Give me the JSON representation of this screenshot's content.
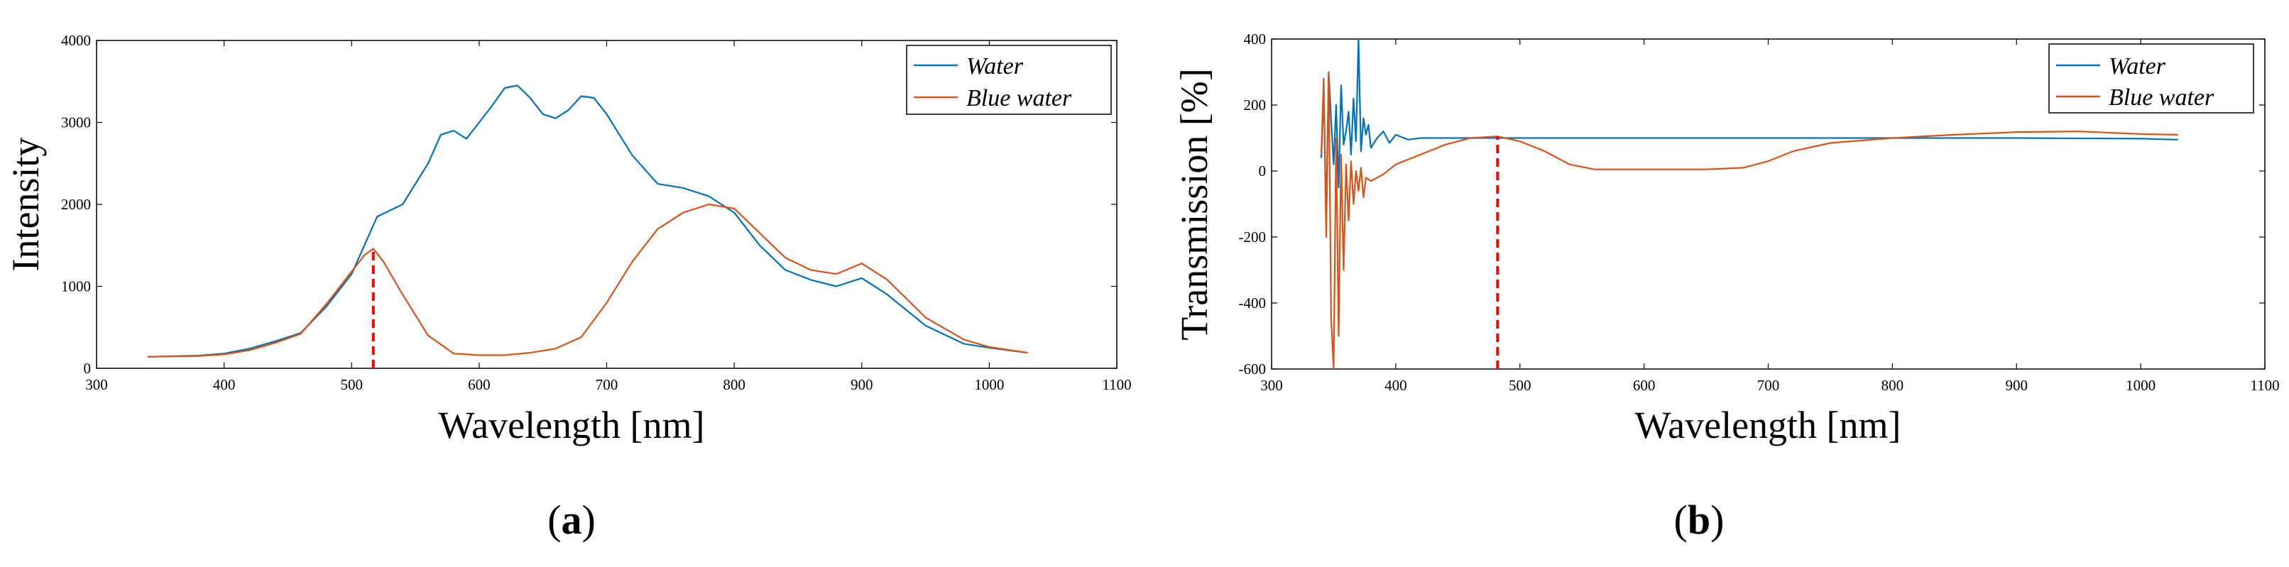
{
  "figure": {
    "panels": [
      {
        "id": "a",
        "label_open": "(",
        "label_letter": "a",
        "label_close": ")"
      },
      {
        "id": "b",
        "label_open": "(",
        "label_letter": "b",
        "label_close": ")"
      }
    ]
  },
  "colors": {
    "water": "#0072BD",
    "blue_water": "#D95319",
    "marker": "#FF0000"
  },
  "chart_data": [
    {
      "type": "line",
      "panel": "a",
      "title": "",
      "xlabel": "Wavelength [nm]",
      "ylabel": "Intensity",
      "xlim": [
        300,
        1100
      ],
      "ylim": [
        0,
        4000
      ],
      "xticks": [
        300,
        400,
        500,
        600,
        700,
        800,
        900,
        1000,
        1100
      ],
      "yticks": [
        0,
        1000,
        2000,
        3000,
        4000
      ],
      "legend": [
        "Water",
        "Blue water"
      ],
      "legend_position": "top-right",
      "marker_x": 517,
      "series": [
        {
          "name": "Water",
          "x": [
            340,
            380,
            400,
            420,
            440,
            460,
            480,
            500,
            510,
            520,
            540,
            560,
            570,
            580,
            590,
            600,
            610,
            620,
            630,
            640,
            650,
            660,
            670,
            680,
            690,
            700,
            720,
            740,
            760,
            780,
            800,
            820,
            840,
            860,
            880,
            900,
            920,
            950,
            980,
            1000,
            1030
          ],
          "y": [
            140,
            155,
            180,
            240,
            330,
            430,
            750,
            1150,
            1500,
            1850,
            2000,
            2500,
            2850,
            2900,
            2800,
            3000,
            3200,
            3420,
            3450,
            3300,
            3100,
            3050,
            3150,
            3320,
            3300,
            3100,
            2600,
            2250,
            2200,
            2100,
            1900,
            1500,
            1200,
            1080,
            1000,
            1100,
            900,
            520,
            300,
            250,
            190
          ]
        },
        {
          "name": "Blue water",
          "x": [
            340,
            380,
            400,
            420,
            440,
            460,
            480,
            500,
            510,
            517,
            525,
            540,
            560,
            580,
            600,
            620,
            640,
            660,
            680,
            700,
            720,
            740,
            760,
            780,
            800,
            820,
            840,
            860,
            880,
            900,
            920,
            950,
            980,
            1000,
            1030
          ],
          "y": [
            140,
            150,
            170,
            220,
            310,
            420,
            780,
            1180,
            1380,
            1460,
            1300,
            900,
            400,
            180,
            160,
            160,
            190,
            240,
            380,
            800,
            1300,
            1700,
            1900,
            2000,
            1950,
            1650,
            1350,
            1200,
            1150,
            1280,
            1080,
            620,
            350,
            260,
            190
          ]
        }
      ]
    },
    {
      "type": "line",
      "panel": "b",
      "title": "",
      "xlabel": "Wavelength [nm]",
      "ylabel": "Transmission [%]",
      "xlim": [
        300,
        1100
      ],
      "ylim": [
        -600,
        400
      ],
      "xticks": [
        300,
        400,
        500,
        600,
        700,
        800,
        900,
        1000,
        1100
      ],
      "yticks": [
        -600,
        -400,
        -200,
        0,
        200,
        400
      ],
      "legend": [
        "Water",
        "Blue water"
      ],
      "legend_position": "top-right",
      "marker_x": 482,
      "series": [
        {
          "name": "Water",
          "x": [
            340,
            342,
            344,
            346,
            348,
            350,
            352,
            354,
            356,
            358,
            360,
            362,
            364,
            366,
            368,
            370,
            372,
            374,
            376,
            378,
            380,
            385,
            390,
            395,
            400,
            410,
            420,
            440,
            460,
            500,
            600,
            700,
            800,
            900,
            1000,
            1030
          ],
          "y": [
            40,
            250,
            -150,
            300,
            150,
            20,
            200,
            -50,
            260,
            80,
            120,
            180,
            50,
            220,
            90,
            400,
            60,
            160,
            110,
            140,
            70,
            100,
            120,
            85,
            110,
            95,
            100,
            100,
            100,
            100,
            100,
            100,
            100,
            100,
            98,
            95
          ]
        },
        {
          "name": "Blue water",
          "x": [
            340,
            342,
            344,
            346,
            348,
            350,
            352,
            354,
            356,
            358,
            360,
            362,
            364,
            366,
            368,
            370,
            372,
            374,
            376,
            380,
            390,
            400,
            420,
            440,
            460,
            482,
            500,
            520,
            540,
            560,
            580,
            600,
            650,
            680,
            700,
            720,
            750,
            800,
            850,
            900,
            950,
            1000,
            1030
          ],
          "y": [
            50,
            280,
            -200,
            300,
            -450,
            -600,
            100,
            -500,
            50,
            -300,
            20,
            -150,
            30,
            -100,
            0,
            -60,
            10,
            -80,
            -20,
            -30,
            -10,
            20,
            50,
            80,
            100,
            105,
            90,
            60,
            20,
            5,
            5,
            5,
            5,
            10,
            30,
            60,
            85,
            100,
            110,
            118,
            120,
            112,
            110
          ]
        }
      ]
    }
  ]
}
